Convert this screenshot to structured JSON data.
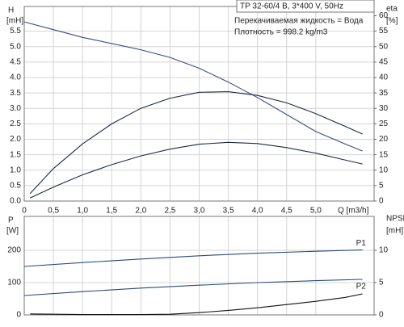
{
  "chart_data": [
    {
      "type": "line",
      "annotations": [
        "TP 32-60/4 B, 3*400 V, 50Hz",
        "Перекачиваемая жидкость = Вода",
        "Плотность = 998.2 kg/m3"
      ],
      "ylabel": "H",
      "yunit": "[mH]",
      "y2label": "eta",
      "y2unit": "[%]",
      "xlabel": "Q [m3/h]",
      "xlim": [
        0,
        6
      ],
      "xticks": [
        0,
        {
          "value": 0.5,
          "label": "0,5"
        },
        {
          "value": 1,
          "label": "1,0"
        },
        {
          "value": 1.5,
          "label": "1,5"
        },
        {
          "value": 2,
          "label": "2,0"
        },
        {
          "value": 2.5,
          "label": "2,5"
        },
        {
          "value": 3,
          "label": "3,0"
        },
        {
          "value": 3.5,
          "label": "3,5"
        },
        {
          "value": 4,
          "label": "4,0"
        },
        {
          "value": 4.5,
          "label": "4,5"
        },
        {
          "value": 5,
          "label": "5,0"
        }
      ],
      "ylim": [
        0,
        6.3
      ],
      "yticks": [
        {
          "value": 0,
          "label": "0.0"
        },
        0.5,
        {
          "value": 1,
          "label": "1.0"
        },
        1.5,
        {
          "value": 2,
          "label": "2.0"
        },
        2.5,
        {
          "value": 3,
          "label": "3.0"
        },
        3.5,
        {
          "value": 4,
          "label": "4.0"
        },
        4.5,
        {
          "value": 5,
          "label": "5.0"
        },
        5.5
      ],
      "y2lim": [
        0,
        63
      ],
      "y2ticks": [
        0,
        5,
        10,
        15,
        20,
        25,
        30,
        35,
        40,
        45,
        50,
        55,
        60
      ],
      "grid": true,
      "series": [
        {
          "color": "#3a4a80",
          "x": [
            0,
            0.5,
            1,
            1.5,
            2,
            2.5,
            3,
            3.5,
            4,
            4.5,
            5,
            5.5,
            5.8
          ],
          "values": [
            5.8,
            5.55,
            5.3,
            5.1,
            4.9,
            4.65,
            4.3,
            3.85,
            3.35,
            2.8,
            2.25,
            1.85,
            1.62
          ]
        },
        {
          "color": "#1e2a44",
          "axis": "y2",
          "x": [
            0.1,
            0.5,
            1,
            1.5,
            2,
            2.5,
            3,
            3.5,
            4,
            4.5,
            5,
            5.5,
            5.8
          ],
          "values": [
            2.4,
            10.5,
            18.5,
            25,
            30,
            33.3,
            35.2,
            35.4,
            34.2,
            31.8,
            28.3,
            24.2,
            21.7
          ]
        },
        {
          "color": "#1e2a44",
          "axis": "y2",
          "x": [
            0.1,
            0.5,
            1,
            1.5,
            2,
            2.5,
            3,
            3.5,
            4,
            4.5,
            5,
            5.5,
            5.8
          ],
          "values": [
            1.0,
            4.5,
            8.5,
            11.8,
            14.6,
            16.8,
            18.4,
            19,
            18.6,
            17.3,
            15.5,
            13.3,
            12
          ]
        }
      ]
    },
    {
      "type": "line",
      "ylabel": "P",
      "yunit": "[W]",
      "y2label": "NPSH",
      "y2unit": "[mH]",
      "xlim": [
        0,
        6
      ],
      "ylim": [
        0,
        305
      ],
      "yticks": [
        0,
        100,
        200
      ],
      "y2lim": [
        0,
        15.25
      ],
      "y2ticks": [
        0,
        5,
        10
      ],
      "grid": true,
      "series": [
        {
          "name": "P1",
          "color": "#2a4a7a",
          "x": [
            0,
            1,
            2,
            3,
            4,
            5,
            5.8
          ],
          "values": [
            150,
            162,
            173,
            183,
            191,
            197,
            201
          ]
        },
        {
          "name": "P2",
          "color": "#2a4a7a",
          "x": [
            0,
            1,
            2,
            3,
            4,
            5,
            5.8
          ],
          "values": [
            60,
            72,
            83,
            92,
            100,
            106,
            110
          ]
        },
        {
          "color": "#111111",
          "axis": "y2",
          "x": [
            0.1,
            1,
            2,
            2.5,
            3,
            3.5,
            4,
            4.5,
            5,
            5.5,
            5.8
          ],
          "values": [
            0.15,
            0.05,
            0.05,
            0.1,
            0.35,
            0.7,
            1.1,
            1.6,
            2.1,
            2.7,
            3.25
          ]
        }
      ]
    }
  ]
}
